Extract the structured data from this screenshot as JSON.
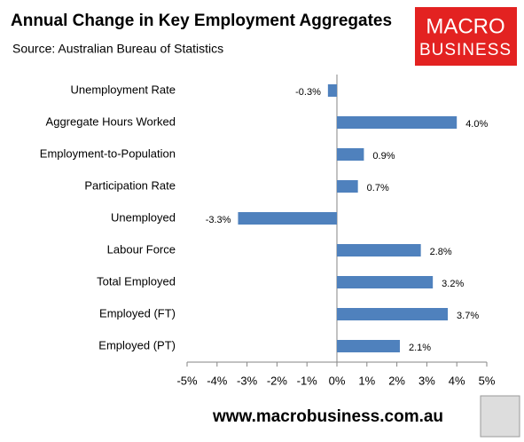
{
  "chart_data": {
    "type": "bar",
    "orientation": "horizontal",
    "title": "Annual Change in Key Employment Aggregates",
    "subtitle": "Source: Australian Bureau of Statistics",
    "categories": [
      "Unemployment Rate",
      "Aggregate Hours Worked",
      "Employment-to-Population",
      "Participation Rate",
      "Unemployed",
      "Labour Force",
      "Total Employed",
      "Employed (FT)",
      "Employed (PT)"
    ],
    "values": [
      -0.3,
      4.0,
      0.9,
      0.7,
      -3.3,
      2.8,
      3.2,
      3.7,
      2.1
    ],
    "value_labels": [
      "-0.3%",
      "4.0%",
      "0.9%",
      "0.7%",
      "-3.3%",
      "2.8%",
      "3.2%",
      "3.7%",
      "2.1%"
    ],
    "color": "#4f81bd",
    "xlim": [
      -5,
      5
    ],
    "xticks": [
      {
        "value": -5,
        "label": "-5%"
      },
      {
        "value": -4,
        "label": "-4%"
      },
      {
        "value": -3,
        "label": "-3%"
      },
      {
        "value": -2,
        "label": "-2%"
      },
      {
        "value": -1,
        "label": "-1%"
      },
      {
        "value": 0,
        "label": "0%"
      },
      {
        "value": 1,
        "label": "1%"
      },
      {
        "value": 2,
        "label": "2%"
      },
      {
        "value": 3,
        "label": "3%"
      },
      {
        "value": 4,
        "label": "4%"
      },
      {
        "value": 5,
        "label": "5%"
      }
    ]
  },
  "logo": {
    "line1": "MACRO",
    "line2": "BUSINESS"
  },
  "footer": "www.macrobusiness.com.au"
}
